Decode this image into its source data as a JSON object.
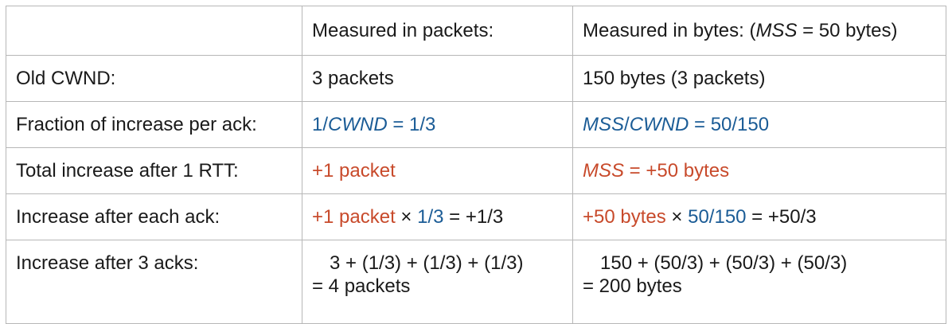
{
  "table": {
    "header": {
      "col1": "",
      "col2": "Measured in packets:",
      "col3_prefix": "Measured in bytes: (",
      "col3_mss": "MSS",
      "col3_suffix": " = 50 bytes)"
    },
    "rows": [
      {
        "label": "Old CWND:",
        "packets": "3 packets",
        "bytes": "150 bytes (3 packets)"
      },
      {
        "label": "Fraction of increase per ack:",
        "packets_prefix": "1/",
        "packets_cwnd": "CWND",
        "packets_suffix": " = 1/3",
        "bytes_mss": "MSS",
        "bytes_slash": "/",
        "bytes_cwnd": "CWND",
        "bytes_suffix": " = 50/150"
      },
      {
        "label": "Total increase after 1 RTT:",
        "packets": "+1 packet",
        "bytes_mss": "MSS",
        "bytes_suffix": " = +50 bytes"
      },
      {
        "label": "Increase after each ack:",
        "packets_red": "+1 packet",
        "packets_times": " × ",
        "packets_blue": "1/3",
        "packets_result": " = +1/3",
        "bytes_red": "+50 bytes",
        "bytes_times": " × ",
        "bytes_blue": "50/150",
        "bytes_result": " = +50/3"
      },
      {
        "label": "Increase after 3 acks:",
        "packets_line1": "3 + (1/3) + (1/3) + (1/3)",
        "packets_line2": "= 4 packets",
        "bytes_line1": "150 + (50/3) + (50/3) + (50/3)",
        "bytes_line2": "= 200 bytes"
      }
    ],
    "colors": {
      "blue": "#1b5c96",
      "red": "#c84a2b",
      "border": "#b7b7b7"
    }
  }
}
